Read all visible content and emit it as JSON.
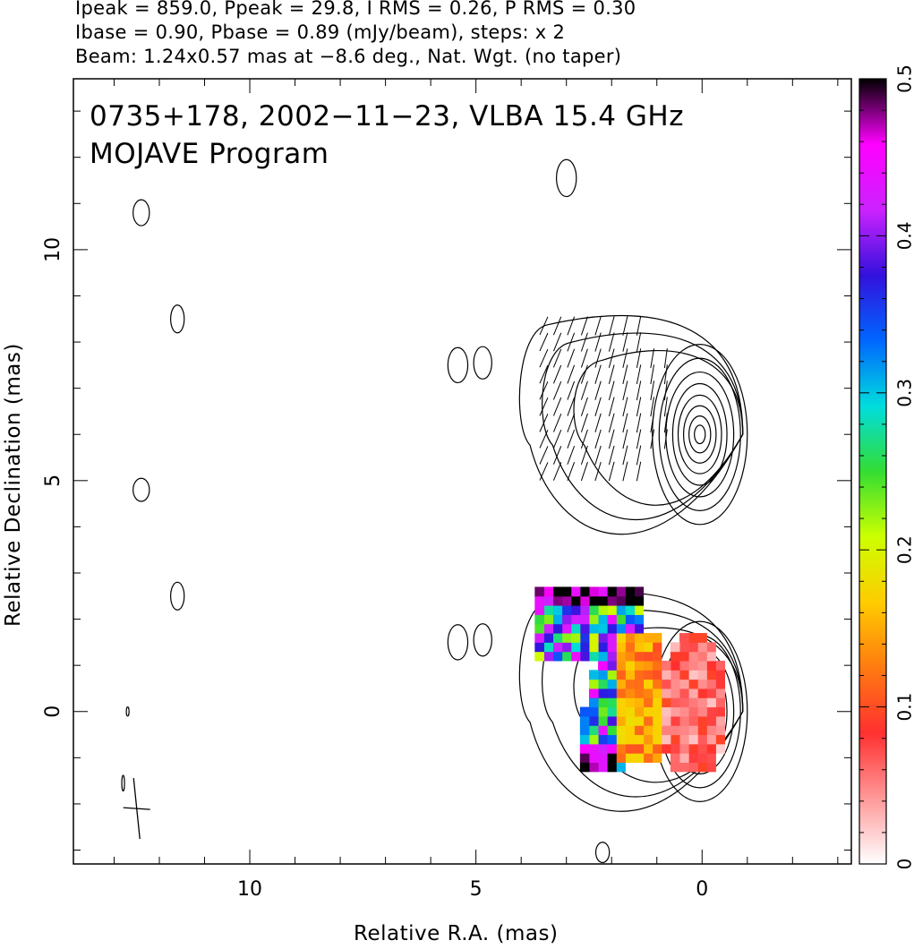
{
  "header": {
    "line1": "Ipeak = 859.0, Ppeak = 29.8, I RMS = 0.26, P RMS = 0.30",
    "line2": "Ibase = 0.90, Pbase = 0.89 (mJy/beam), steps: x 2",
    "line3": "Beam: 1.24x0.57 mas at −8.6 deg., Nat. Wgt. (no taper)"
  },
  "plot_title": {
    "line1": "0735+178, 2002−11−23, VLBA 15.4 GHz",
    "line2": "MOJAVE Program"
  },
  "chart_data": {
    "type": "heatmap",
    "xlabel": "Relative R.A. (mas)",
    "ylabel": "Relative Declination (mas)",
    "xlim": [
      13.9,
      -3.3
    ],
    "ylim": [
      -3.3,
      13.7
    ],
    "xticks": [
      10,
      5,
      0
    ],
    "yticks": [
      10,
      5,
      0
    ],
    "colorbar": {
      "range": [
        0,
        0.5
      ],
      "ticks": [
        0,
        0.1,
        0.2,
        0.3,
        0.4,
        0.5
      ],
      "colormap": [
        "#ffffff",
        "#ff9999",
        "#ff3030",
        "#ff7a10",
        "#ffcc00",
        "#ccff00",
        "#33dd33",
        "#00dddd",
        "#0066ff",
        "#3311dd",
        "#cc22ff",
        "#ff00ff",
        "#000000"
      ]
    },
    "intensity_peak_mas": [
      0.0,
      0.0
    ],
    "upper_panel_peak_mas": [
      0.0,
      6.0
    ]
  }
}
